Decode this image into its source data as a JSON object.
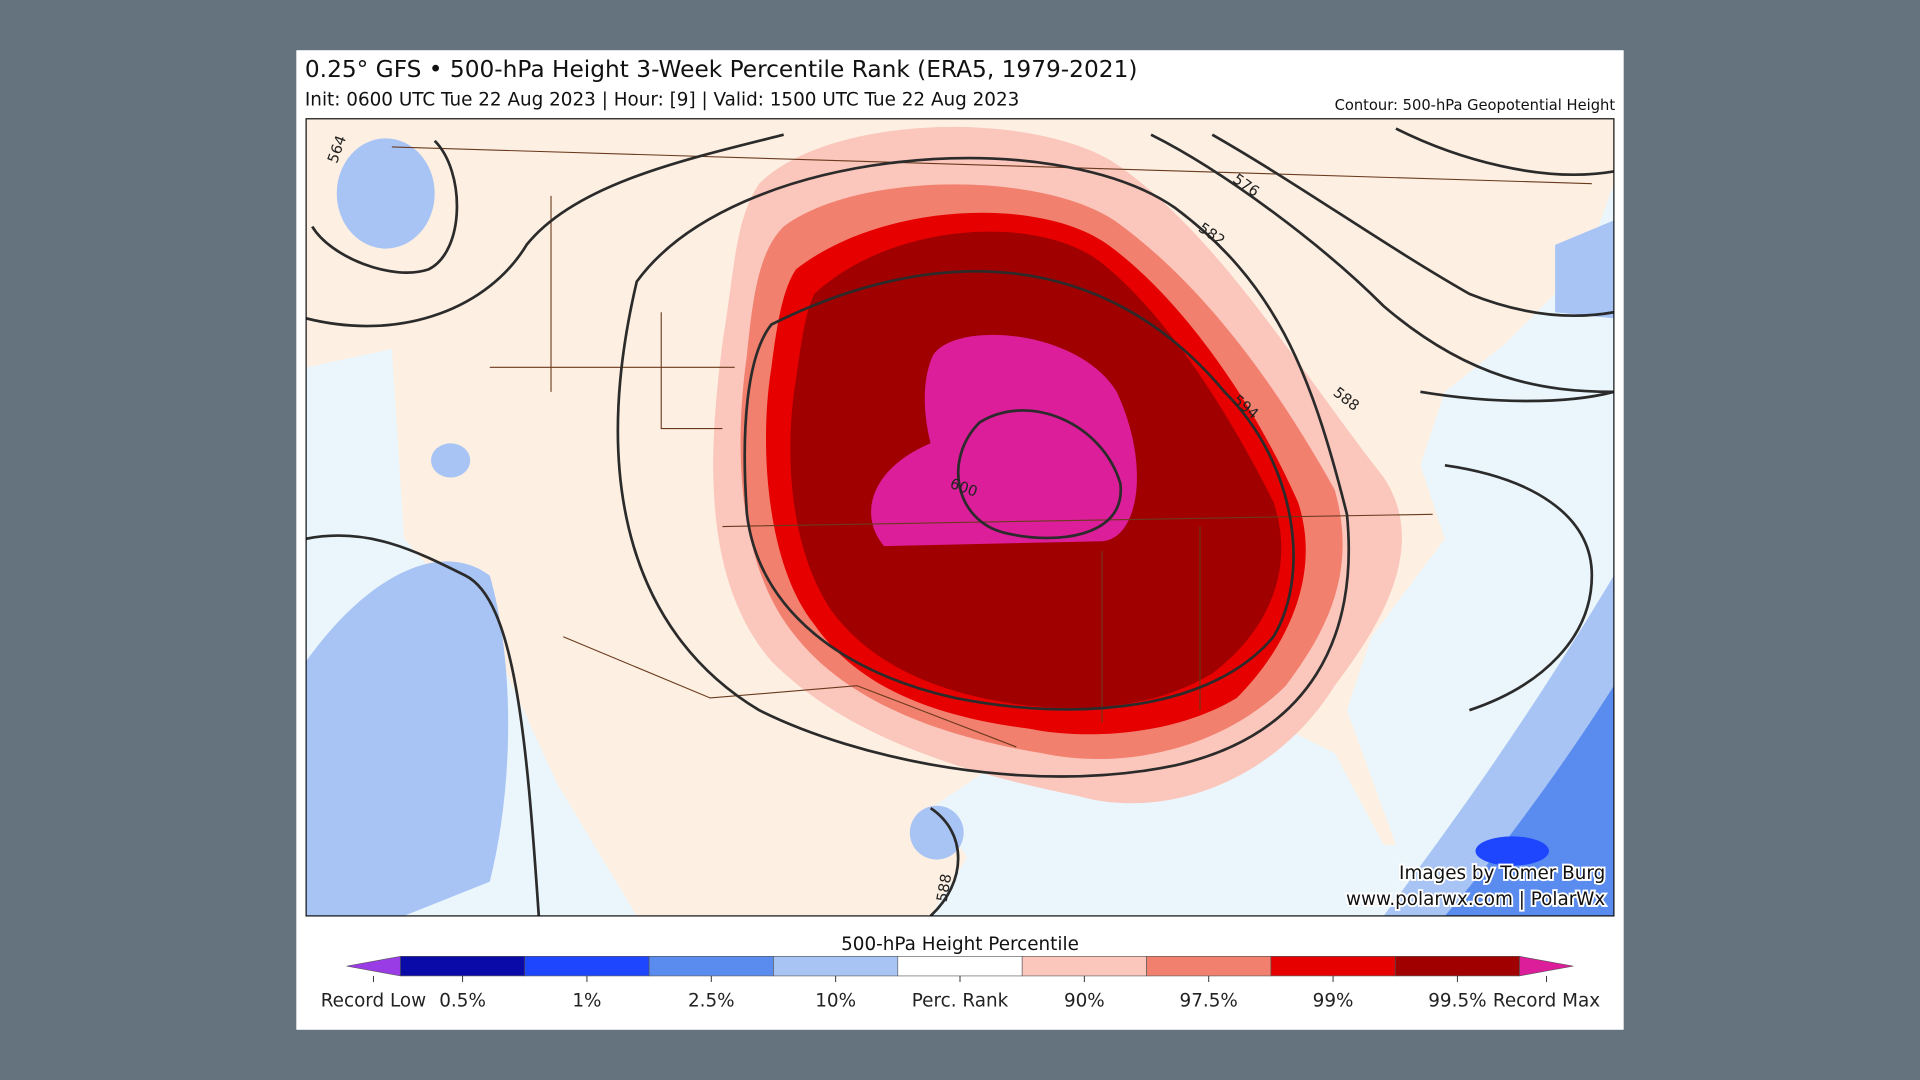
{
  "header": {
    "title": "0.25° GFS • 500-hPa Height 3-Week Percentile Rank (ERA5, 1979-2021)",
    "subtitle": "Init: 0600 UTC Tue 22 Aug 2023 | Hour: [9] | Valid: 1500 UTC Tue 22 Aug 2023",
    "contour_note": "Contour: 500-hPa Geopotential Height"
  },
  "map": {
    "contour_labels": [
      "564",
      "576",
      "582",
      "588",
      "594",
      "600",
      "588"
    ],
    "credits": [
      "Images by Tomer Burg",
      "www.polarwx.com | PolarWx"
    ]
  },
  "colorbar": {
    "title": "500-hPa Height Percentile",
    "labels": [
      "Record Low",
      "0.5%",
      "1%",
      "2.5%",
      "10%",
      "Perc. Rank",
      "90%",
      "97.5%",
      "99%",
      "99.5%",
      "Record Max"
    ],
    "colors": [
      "#9a3ce6",
      "#0a0aa8",
      "#1e46ff",
      "#5a8cf0",
      "#a8c4f5",
      "#ffffff",
      "#fbc6bc",
      "#f2806f",
      "#e60000",
      "#a00000",
      "#dc1e9a"
    ]
  }
}
